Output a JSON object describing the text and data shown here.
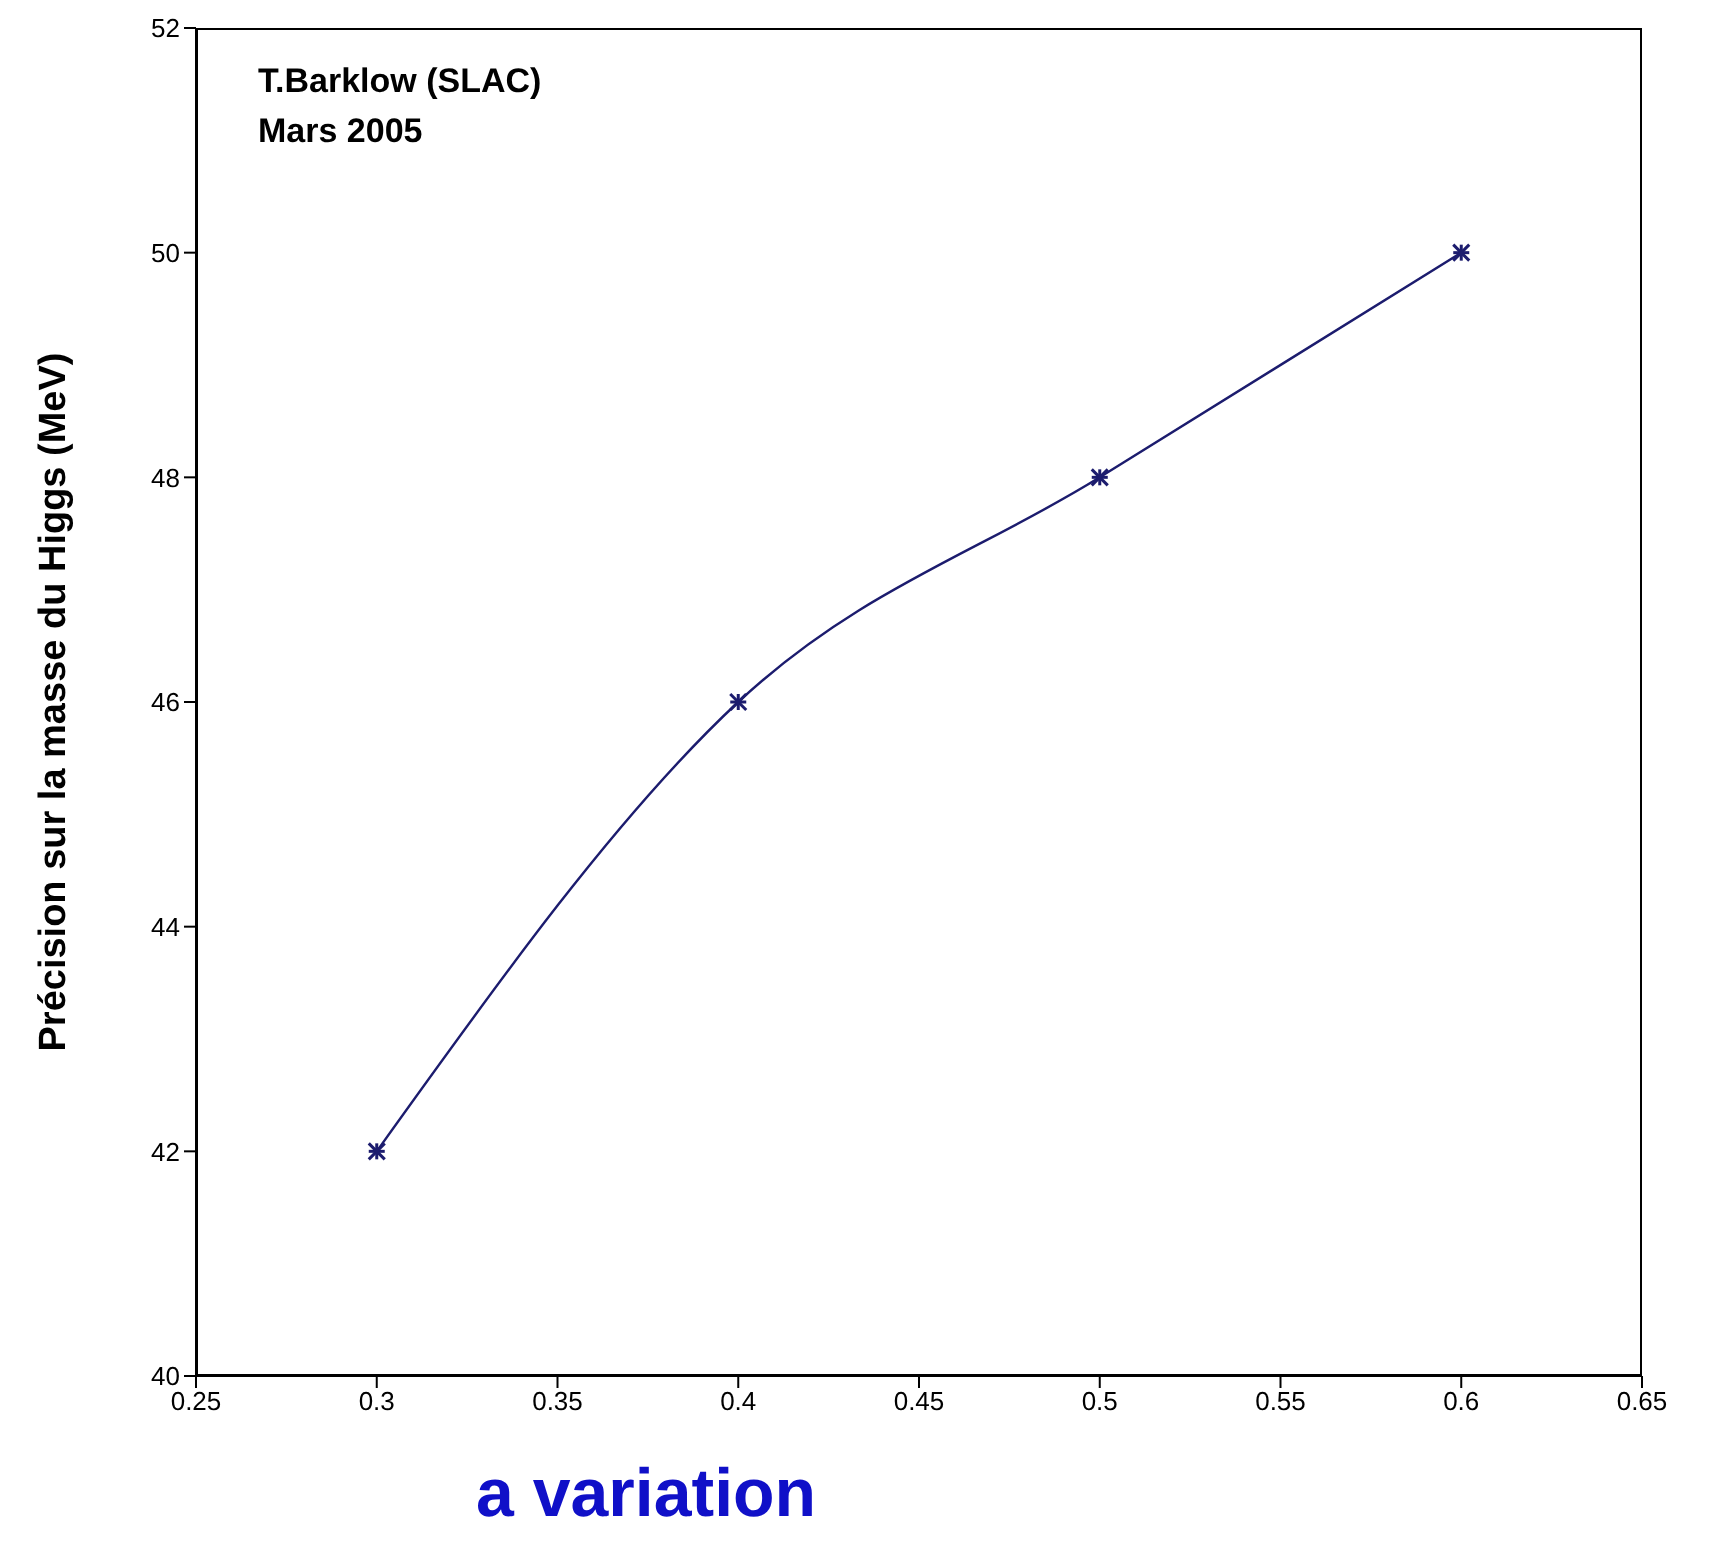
{
  "chart_data": {
    "type": "line",
    "x": [
      0.3,
      0.4,
      0.5,
      0.6
    ],
    "series": [
      {
        "color": "#1c1c6e",
        "values": [
          42,
          46,
          48,
          50
        ]
      }
    ],
    "xlim": [
      0.25,
      0.65
    ],
    "xticks": [
      0.25,
      0.3,
      0.35,
      0.4,
      0.45,
      0.5,
      0.55,
      0.6,
      0.65
    ],
    "ylim": [
      40,
      52
    ],
    "yticks": [
      40,
      42,
      44,
      46,
      48,
      50,
      52
    ],
    "xlabel": "a variation",
    "ylabel": "Précision sur la masse du Higgs   (MeV)",
    "annotations": [
      "T.Barklow (SLAC)",
      "Mars 2005"
    ],
    "marker": "cross",
    "line_style": "solid",
    "grid": false,
    "legend": false
  }
}
